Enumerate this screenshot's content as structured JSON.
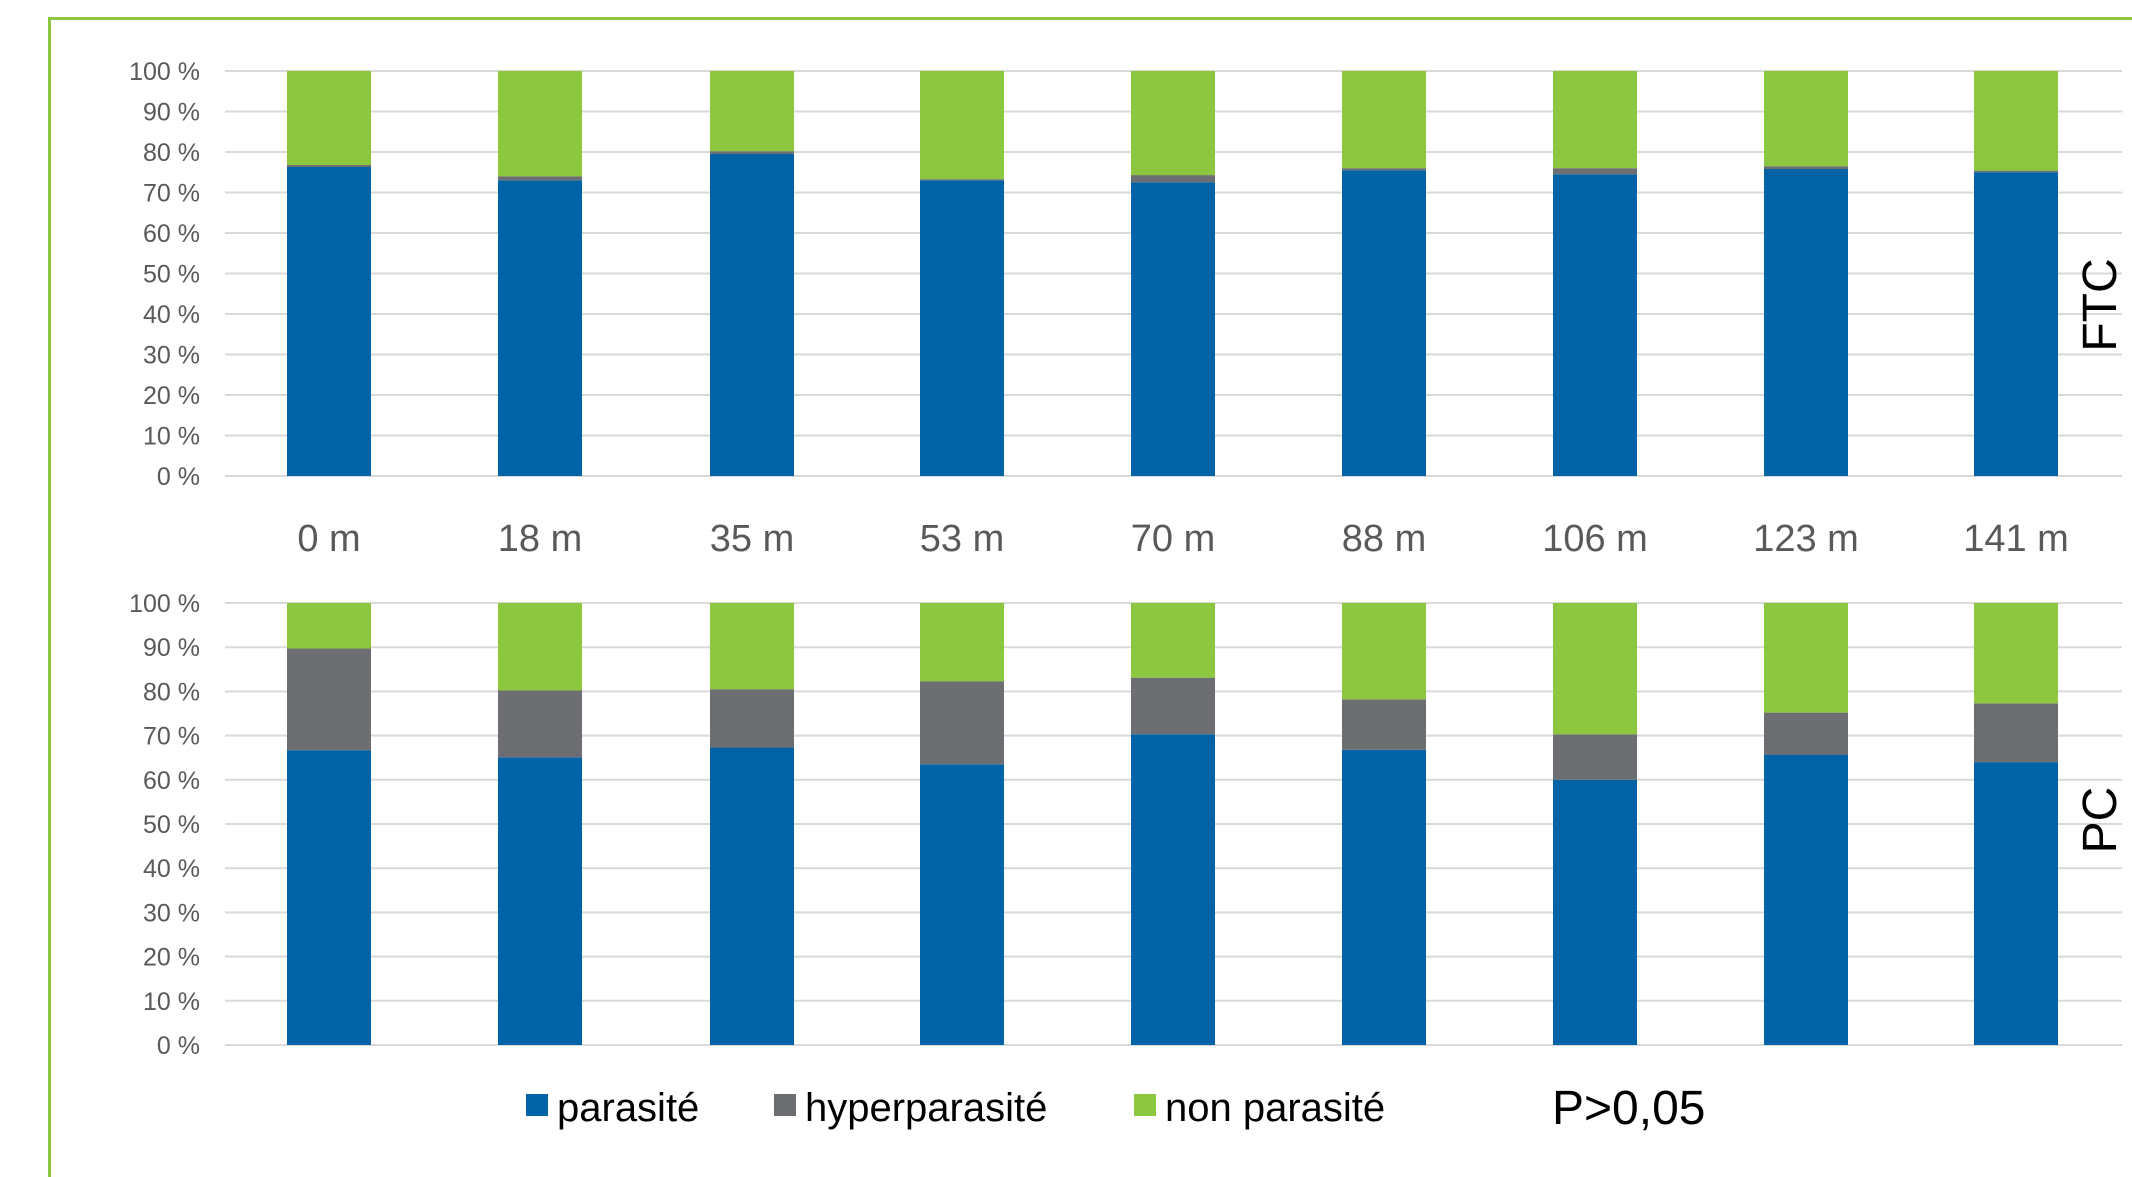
{
  "chart_data": [
    {
      "type": "bar",
      "stacked": true,
      "panel_label": "FTC",
      "categories": [
        "0 m",
        "18 m",
        "35 m",
        "53 m",
        "70 m",
        "88 m",
        "106 m",
        "123 m",
        "141 m"
      ],
      "y_ticks": [
        "0 %",
        "10 %",
        "20 %",
        "30 %",
        "40 %",
        "50 %",
        "60 %",
        "70 %",
        "80 %",
        "90 %",
        "100 %"
      ],
      "ylim": [
        0,
        100
      ],
      "grid": true,
      "series": [
        {
          "name": "parasité",
          "color": "#0063a6",
          "values": [
            76.3,
            73.0,
            79.5,
            73.0,
            72.5,
            75.5,
            74.5,
            75.8,
            75.0
          ]
        },
        {
          "name": "hyperparasité",
          "color": "#6d6e71",
          "values": [
            0.5,
            1.0,
            0.7,
            0.3,
            1.8,
            0.5,
            1.5,
            0.7,
            0.4
          ]
        },
        {
          "name": "non parasité",
          "color": "#8dc63f",
          "values": [
            23.2,
            26.0,
            19.8,
            26.7,
            25.7,
            24.0,
            24.0,
            23.5,
            24.6
          ]
        }
      ]
    },
    {
      "type": "bar",
      "stacked": true,
      "panel_label": "PC",
      "categories": [
        "0 m",
        "18 m",
        "35 m",
        "53 m",
        "70 m",
        "88 m",
        "106 m",
        "123 m",
        "141 m"
      ],
      "y_ticks": [
        "0 %",
        "10 %",
        "20 %",
        "30 %",
        "40 %",
        "50 %",
        "60 %",
        "70 %",
        "80 %",
        "90 %",
        "100 %"
      ],
      "ylim": [
        0,
        100
      ],
      "grid": true,
      "series": [
        {
          "name": "parasité",
          "color": "#0063a6",
          "values": [
            66.7,
            65.1,
            67.3,
            63.5,
            70.3,
            66.8,
            60.0,
            65.7,
            64.0
          ]
        },
        {
          "name": "hyperparasité",
          "color": "#6d6e71",
          "values": [
            23.0,
            15.1,
            13.2,
            18.8,
            12.8,
            11.4,
            10.3,
            9.5,
            13.3
          ]
        },
        {
          "name": "non parasité",
          "color": "#8dc63f",
          "values": [
            10.3,
            19.8,
            19.5,
            17.7,
            16.9,
            21.8,
            29.7,
            24.8,
            22.7
          ]
        }
      ]
    }
  ],
  "legend": {
    "items": [
      {
        "label": "parasité",
        "color": "#0063a6"
      },
      {
        "label": "hyperparasité",
        "color": "#6d6e71"
      },
      {
        "label": "non parasité",
        "color": "#8dc63f"
      }
    ],
    "placement": "bottom"
  },
  "p_value_text": "P>0,05"
}
